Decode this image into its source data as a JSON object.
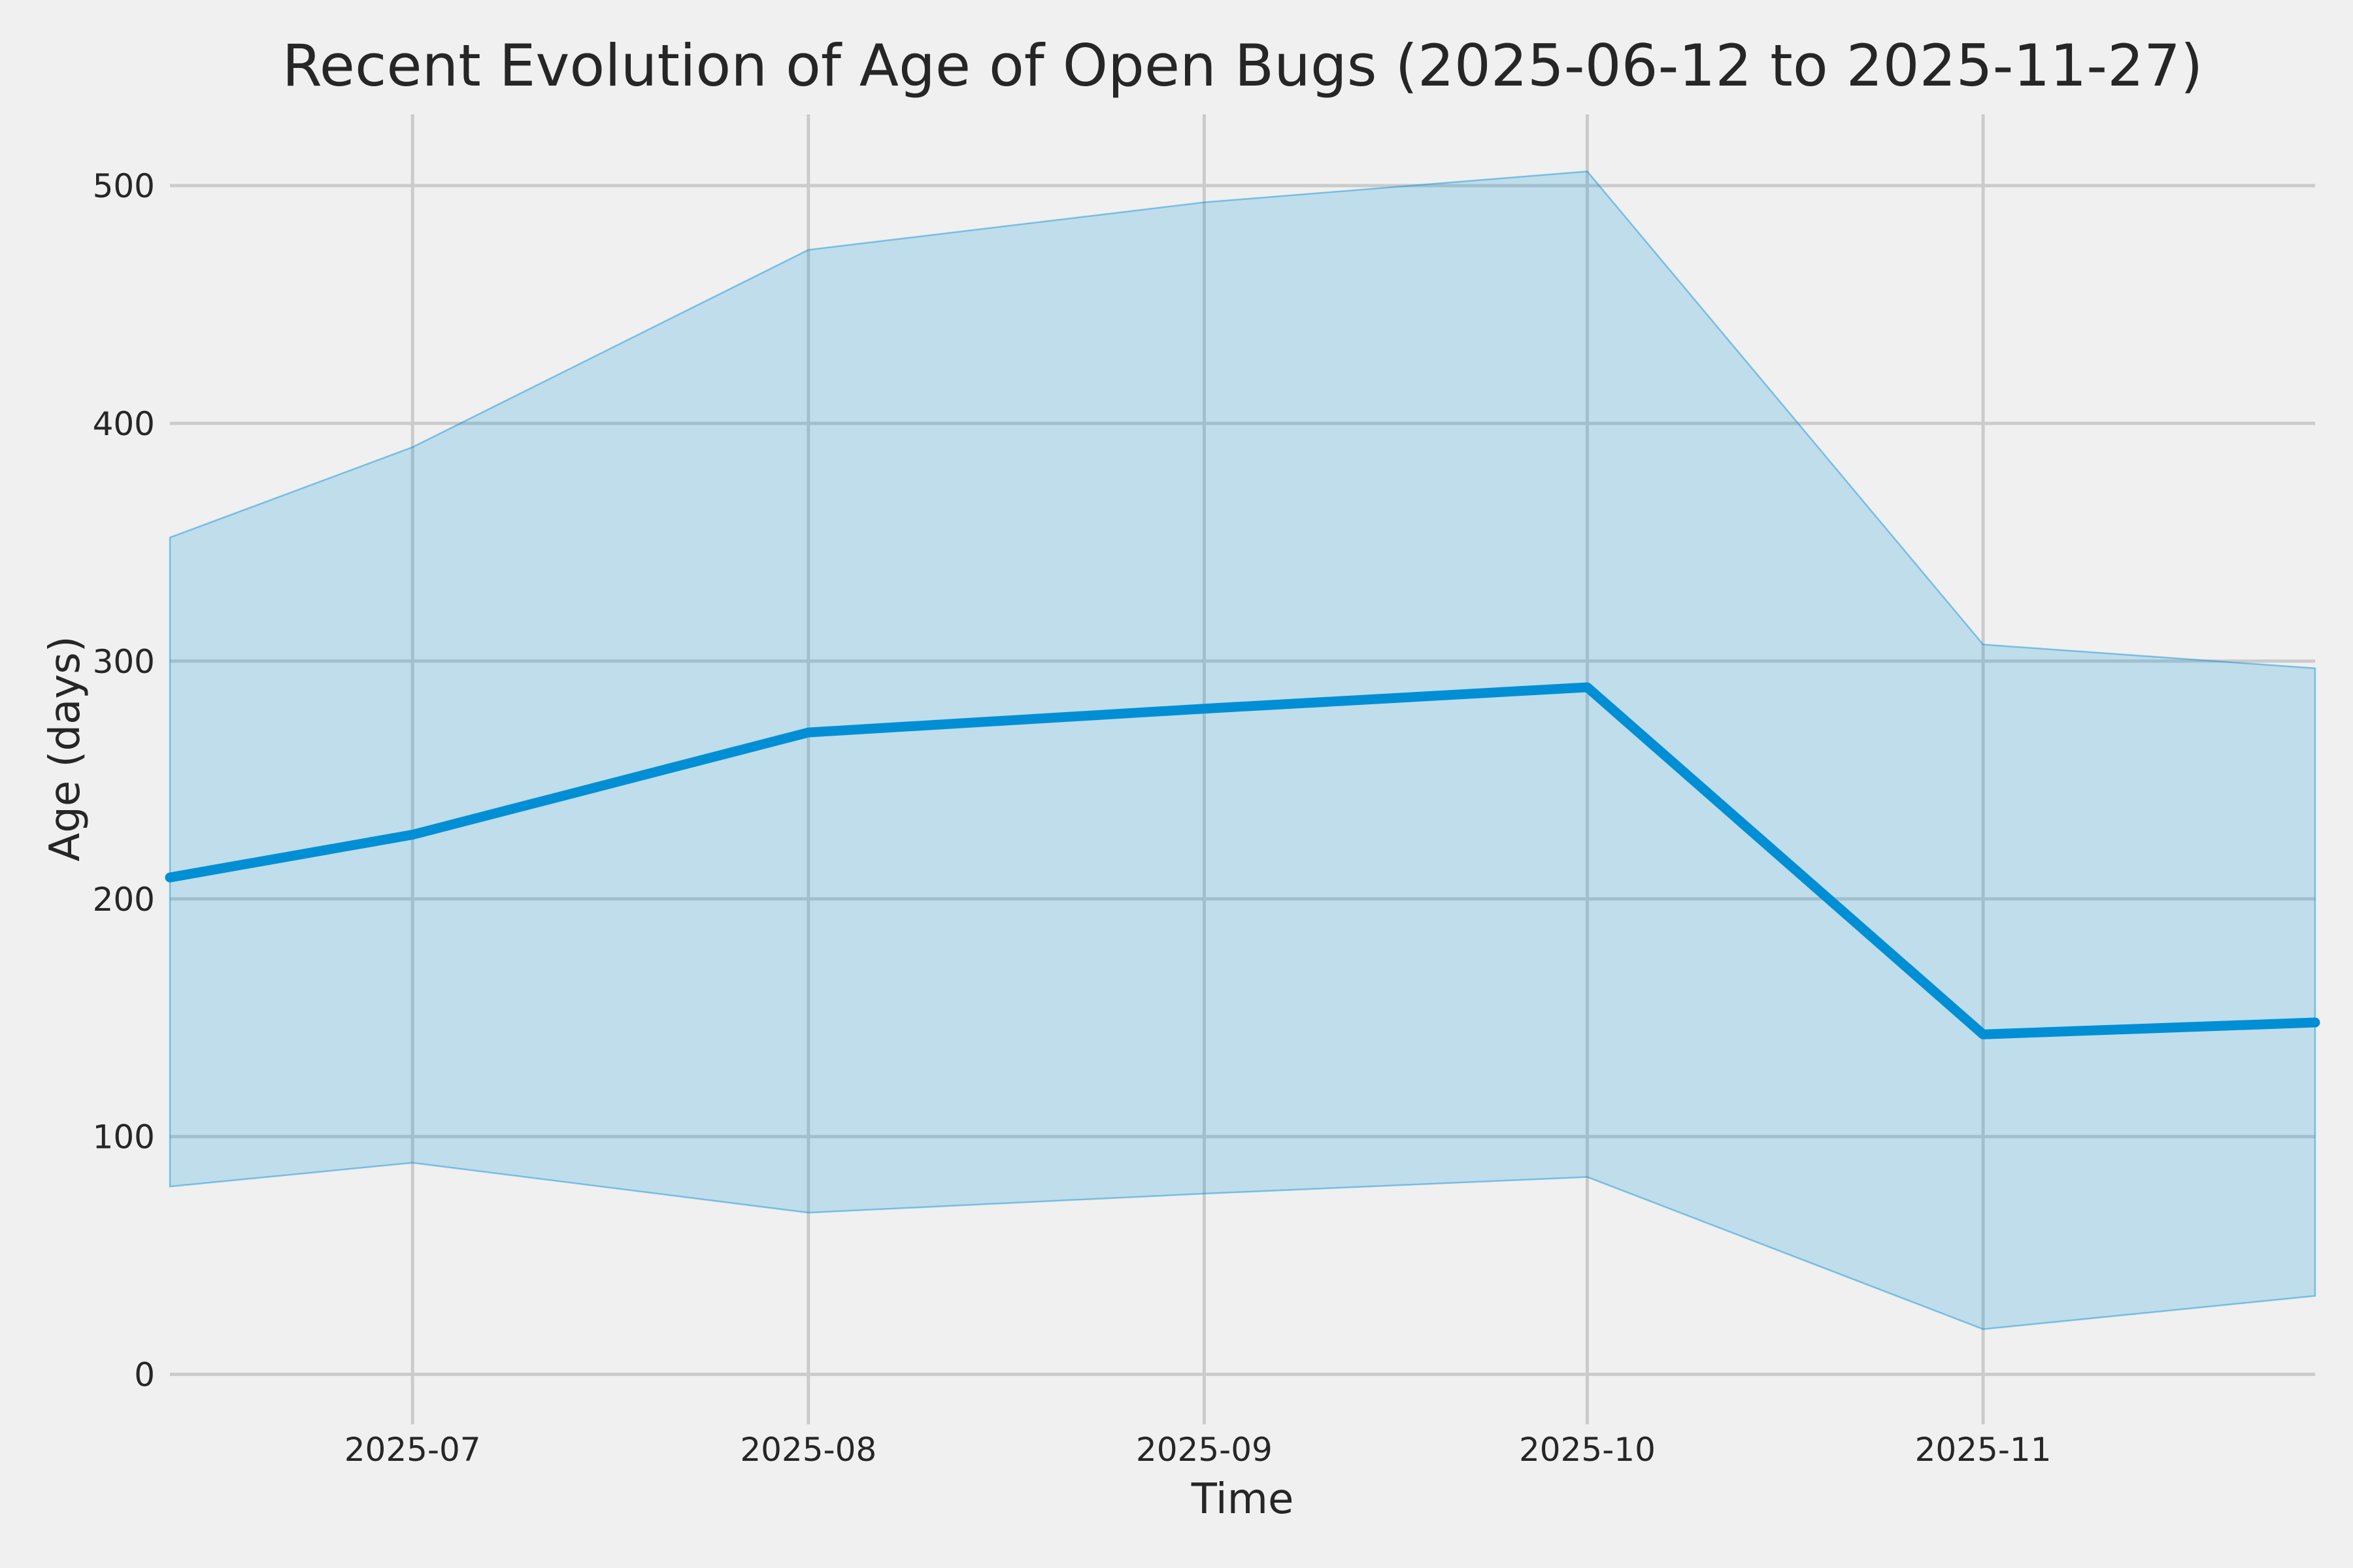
{
  "figure": {
    "background_color": "#f0f0f0",
    "title": "Recent Evolution of Age of Open Bugs (2025-06-12 to 2025-11-27)"
  },
  "chart_data": {
    "type": "line",
    "title": "Recent Evolution of Age of Open Bugs (2025-06-12 to 2025-11-27)",
    "xlabel": "Time",
    "ylabel": "Age (days)",
    "x_range": [
      "2025-06-12",
      "2025-11-27"
    ],
    "ylim": [
      -21,
      530
    ],
    "grid": true,
    "legend_position": "none",
    "x_dates": [
      "2025-06-12",
      "2025-07-01",
      "2025-08-01",
      "2025-09-01",
      "2025-10-01",
      "2025-11-01",
      "2025-11-27"
    ],
    "series": [
      {
        "name": "median-age",
        "role": "line",
        "values": [
          209,
          227,
          270,
          280,
          289,
          143,
          148
        ]
      },
      {
        "name": "band-upper",
        "role": "band_upper",
        "values": [
          352,
          390,
          473,
          493,
          506,
          307,
          297
        ]
      },
      {
        "name": "band-lower",
        "role": "band_lower",
        "values": [
          79,
          89,
          68,
          76,
          83,
          19,
          33
        ]
      }
    ],
    "x_tick_labels": [
      "2025-07",
      "2025-08",
      "2025-09",
      "2025-10",
      "2025-11"
    ],
    "x_tick_dates": [
      "2025-07-01",
      "2025-08-01",
      "2025-09-01",
      "2025-10-01",
      "2025-11-01"
    ],
    "y_tick_labels": [
      "0",
      "100",
      "200",
      "300",
      "400",
      "500"
    ],
    "y_tick_values": [
      0,
      100,
      200,
      300,
      400,
      500
    ],
    "colors": {
      "line": "#008fd5",
      "band_fill": "rgba(0,143,213,0.20)",
      "band_edge": "rgba(0,143,213,0.45)",
      "grid": "#cbcbcb",
      "background": "#f0f0f0",
      "text": "#262626"
    }
  }
}
